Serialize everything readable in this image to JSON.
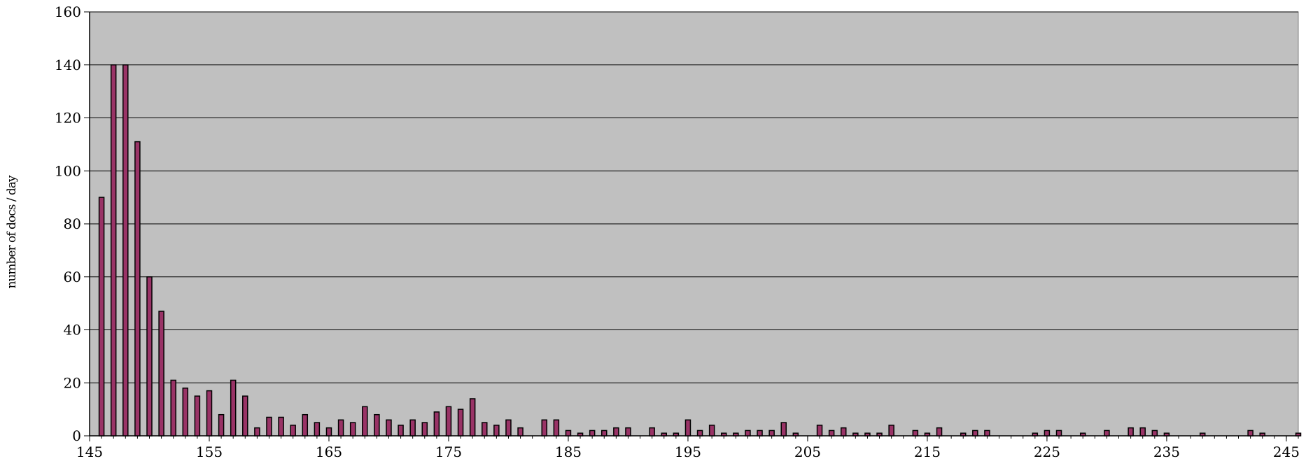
{
  "chart_data": {
    "type": "bar",
    "title": "",
    "xlabel": "",
    "ylabel": "number of docs / day",
    "xlim": [
      145,
      246
    ],
    "ylim": [
      0,
      160
    ],
    "xticks": [
      145,
      155,
      165,
      175,
      185,
      195,
      205,
      215,
      225,
      235,
      245
    ],
    "yticks": [
      0,
      20,
      40,
      60,
      80,
      100,
      120,
      140,
      160
    ],
    "grid": true,
    "legend": "none",
    "colors": {
      "plot_bg": "#C0C0C0",
      "bar": "#993366",
      "bar_edge": "#000000",
      "grid": "#000000"
    },
    "series": [
      {
        "x": [
          146,
          147,
          148,
          149,
          150,
          151,
          152,
          153,
          154,
          155,
          156,
          157,
          158,
          159,
          160,
          161,
          162,
          163,
          164,
          165,
          166,
          167,
          168,
          169,
          170,
          171,
          172,
          173,
          174,
          175,
          176,
          177,
          178,
          179,
          180,
          181,
          183,
          184,
          185,
          186,
          187,
          188,
          189,
          190,
          192,
          193,
          194,
          195,
          196,
          197,
          198,
          199,
          200,
          201,
          202,
          203,
          204,
          206,
          207,
          208,
          209,
          210,
          211,
          212,
          214,
          215,
          216,
          218,
          219,
          220,
          224,
          225,
          226,
          228,
          230,
          232,
          233,
          234,
          235,
          238,
          242,
          243,
          246
        ],
        "values": [
          90,
          140,
          140,
          111,
          60,
          47,
          21,
          18,
          15,
          17,
          8,
          21,
          15,
          3,
          7,
          7,
          4,
          8,
          5,
          3,
          6,
          5,
          11,
          8,
          6,
          4,
          6,
          5,
          9,
          11,
          10,
          14,
          5,
          4,
          6,
          3,
          6,
          6,
          2,
          1,
          2,
          2,
          3,
          3,
          3,
          1,
          1,
          6,
          2,
          4,
          1,
          1,
          2,
          2,
          2,
          5,
          1,
          4,
          2,
          3,
          1,
          1,
          1,
          4,
          2,
          1,
          3,
          1,
          2,
          2,
          1,
          2,
          2,
          1,
          2,
          3,
          3,
          2,
          1,
          1,
          2,
          1,
          1
        ]
      }
    ]
  }
}
